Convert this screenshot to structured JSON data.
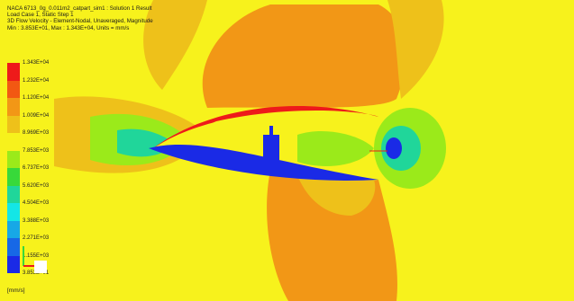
{
  "header": {
    "line1": "NACA 6713_0g_0.011m2_catpart_sim1 : Solution 1 Result",
    "line2": "Load Case 1, Static Step 1",
    "line3": "3D Flow Velocity - Element-Nodal, Unaveraged, Magnitude",
    "line4": "Min : 3.853E+01, Max : 1.343E+04, Units = mm/s"
  },
  "legend": {
    "ticks": [
      "1.343E+04",
      "1.232E+04",
      "1.120E+04",
      "1.009E+04",
      "8.969E+03",
      "7.853E+03",
      "6.737E+03",
      "5.620E+03",
      "4.504E+03",
      "3.388E+03",
      "2.271E+03",
      "1.155E+03",
      "3.853E+01"
    ],
    "colors": [
      "#ee1a1a",
      "#f25812",
      "#f29716",
      "#eec11a",
      "#f7f21c",
      "#9bea1a",
      "#38d93a",
      "#20d69a",
      "#14e6e6",
      "#17a8e6",
      "#1768e6",
      "#1a2ae6",
      "#0d0dc0"
    ],
    "units": "[mm/s]"
  }
}
